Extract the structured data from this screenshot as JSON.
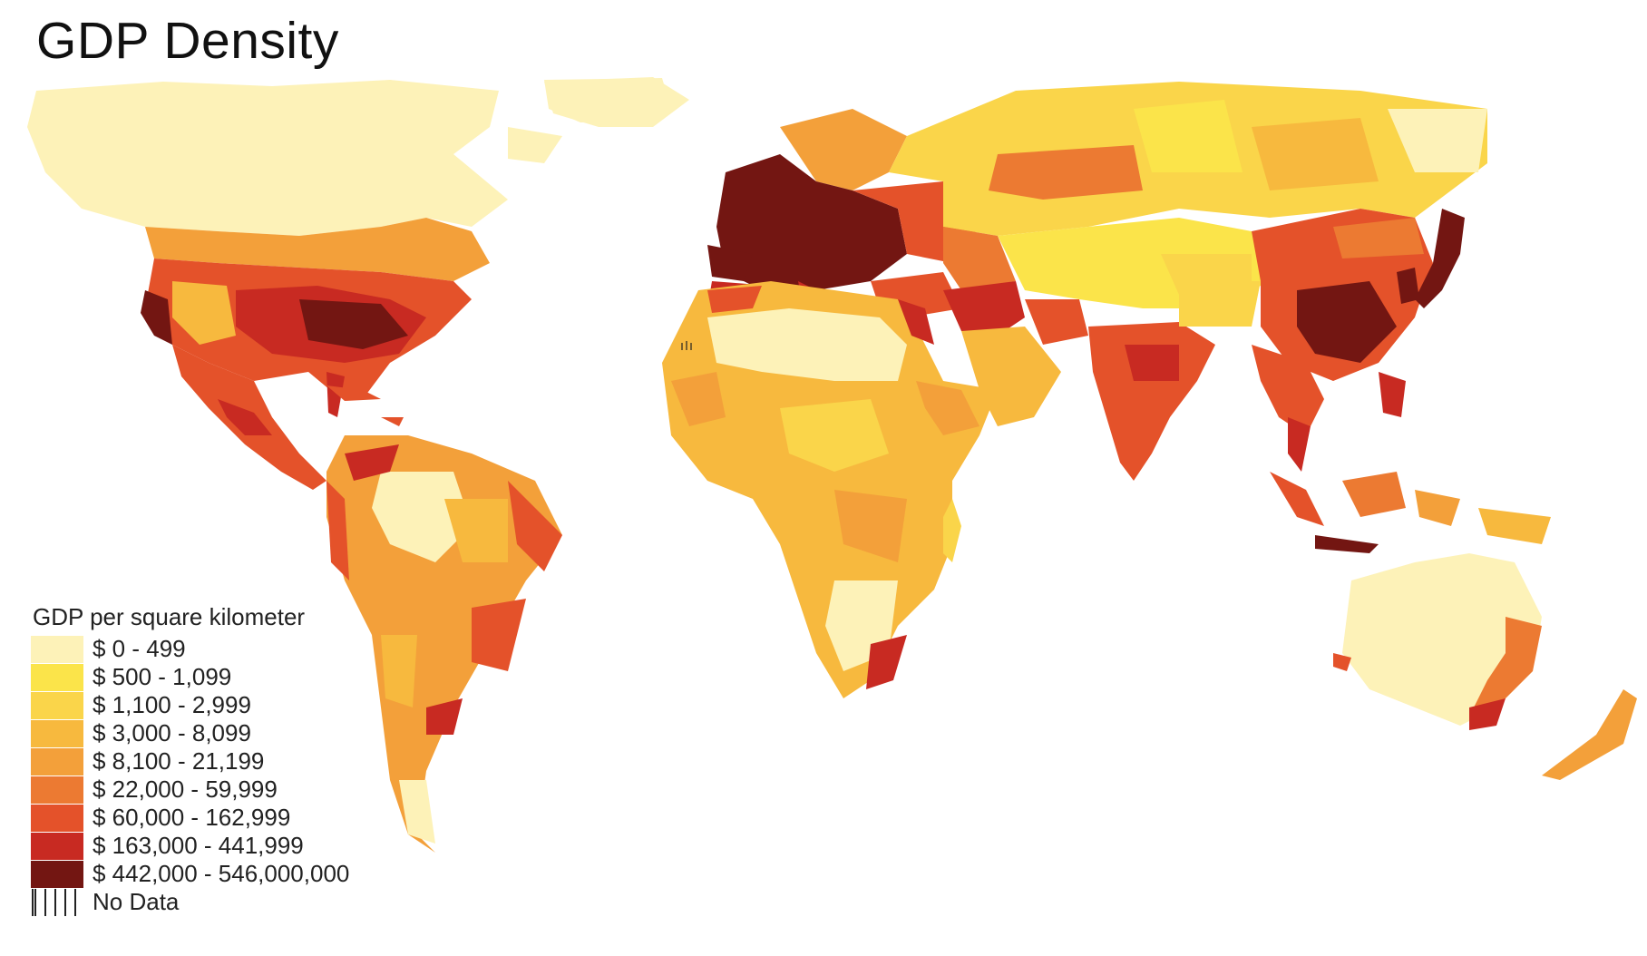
{
  "title": "GDP Density",
  "legend": {
    "title": "GDP per square kilometer",
    "classes": [
      {
        "label": "$ 0 - 499",
        "color": "#fdf2b8"
      },
      {
        "label": "$ 500 - 1,099",
        "color": "#fbe44a"
      },
      {
        "label": "$ 1,100 - 2,999",
        "color": "#fad54a"
      },
      {
        "label": "$ 3,000 - 8,099",
        "color": "#f7b93e"
      },
      {
        "label": "$ 8,100 - 21,199",
        "color": "#f3a03a"
      },
      {
        "label": "$ 22,000 - 59,999",
        "color": "#ec7a32"
      },
      {
        "label": "$ 60,000 - 162,999",
        "color": "#e4522a"
      },
      {
        "label": "$ 163,000 - 441,999",
        "color": "#c82a22"
      },
      {
        "label": "$ 442,000 - 546,000,000",
        "color": "#731612"
      }
    ],
    "no_data_label": "No Data"
  }
}
